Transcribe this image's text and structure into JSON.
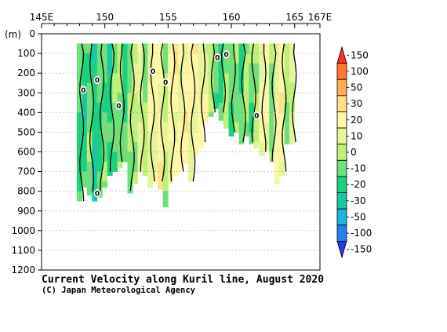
{
  "chart_data": {
    "type": "heatmap",
    "title": "Current Velocity along Kuril line, August 2020",
    "credit": "(C) Japan Meteorological Agency",
    "ylabel_unit": "(m)",
    "x_ticks": [
      "145E",
      "150",
      "155",
      "160",
      "165",
      "167E"
    ],
    "x_tick_values": [
      145,
      150,
      155,
      160,
      165,
      167
    ],
    "xlim": [
      145,
      167
    ],
    "y_ticks": [
      "0",
      "100",
      "200",
      "300",
      "400",
      "500",
      "600",
      "700",
      "800",
      "900",
      "1000",
      "1100",
      "1200"
    ],
    "y_tick_values": [
      0,
      100,
      200,
      300,
      400,
      500,
      600,
      700,
      800,
      900,
      1000,
      1100,
      1200
    ],
    "ylim": [
      0,
      1200
    ],
    "y_inverted": true,
    "grid": true,
    "colorbar": {
      "labels": [
        "150",
        "100",
        "50",
        "30",
        "20",
        "10",
        "0",
        "-10",
        "-20",
        "-30",
        "-50",
        "-100",
        "-150"
      ],
      "levels": [
        150,
        100,
        50,
        30,
        20,
        10,
        0,
        -10,
        -20,
        -30,
        -50,
        -100,
        -150
      ],
      "colors": [
        "#ff3020",
        "#ff7a30",
        "#ffb050",
        "#ffe08a",
        "#fff6a8",
        "#e6f59a",
        "#bff07a",
        "#6fe07a",
        "#19d27f",
        "#16c8a4",
        "#1fb4e0",
        "#2a7ff0",
        "#2438e8"
      ],
      "placement": "right"
    },
    "contour_zero_labels": [
      {
        "lon": 148.3,
        "depth": 285
      },
      {
        "lon": 149.4,
        "depth": 235
      },
      {
        "lon": 151.1,
        "depth": 365
      },
      {
        "lon": 153.8,
        "depth": 190
      },
      {
        "lon": 154.8,
        "depth": 245
      },
      {
        "lon": 158.9,
        "depth": 120
      },
      {
        "lon": 159.6,
        "depth": 105
      },
      {
        "lon": 162.0,
        "depth": 415
      },
      {
        "lon": 149.4,
        "depth": 810
      }
    ],
    "profiles": [
      {
        "lon": 148.0,
        "bottom": 850,
        "value": -20
      },
      {
        "lon": 148.4,
        "bottom": 780,
        "value": -25
      },
      {
        "lon": 148.8,
        "bottom": 820,
        "value": -15
      },
      {
        "lon": 149.2,
        "bottom": 850,
        "value": -30
      },
      {
        "lon": 149.6,
        "bottom": 830,
        "value": -20
      },
      {
        "lon": 150.0,
        "bottom": 780,
        "value": -15
      },
      {
        "lon": 150.4,
        "bottom": 720,
        "value": -25
      },
      {
        "lon": 150.8,
        "bottom": 700,
        "value": -15
      },
      {
        "lon": 151.2,
        "bottom": 680,
        "value": -10
      },
      {
        "lon": 151.6,
        "bottom": 650,
        "value": -20
      },
      {
        "lon": 152.0,
        "bottom": 810,
        "value": -12
      },
      {
        "lon": 152.4,
        "bottom": 760,
        "value": -5
      },
      {
        "lon": 152.8,
        "bottom": 700,
        "value": 5
      },
      {
        "lon": 153.2,
        "bottom": 720,
        "value": -8
      },
      {
        "lon": 153.6,
        "bottom": 780,
        "value": 8
      },
      {
        "lon": 154.0,
        "bottom": 750,
        "value": 12
      },
      {
        "lon": 154.4,
        "bottom": 790,
        "value": 15
      },
      {
        "lon": 154.8,
        "bottom": 880,
        "value": -5
      },
      {
        "lon": 155.2,
        "bottom": 760,
        "value": 12
      },
      {
        "lon": 155.6,
        "bottom": 720,
        "value": 15
      },
      {
        "lon": 156.0,
        "bottom": 700,
        "value": 12
      },
      {
        "lon": 156.4,
        "bottom": 660,
        "value": 15
      },
      {
        "lon": 156.8,
        "bottom": 750,
        "value": 10
      },
      {
        "lon": 157.2,
        "bottom": 620,
        "value": 15
      },
      {
        "lon": 157.6,
        "bottom": 580,
        "value": 12
      },
      {
        "lon": 158.0,
        "bottom": 450,
        "value": 5
      },
      {
        "lon": 158.4,
        "bottom": 420,
        "value": -8
      },
      {
        "lon": 158.8,
        "bottom": 380,
        "value": -15
      },
      {
        "lon": 159.2,
        "bottom": 440,
        "value": -20
      },
      {
        "lon": 159.6,
        "bottom": 480,
        "value": -12
      },
      {
        "lon": 160.0,
        "bottom": 520,
        "value": -18
      },
      {
        "lon": 160.4,
        "bottom": 500,
        "value": -8
      },
      {
        "lon": 160.8,
        "bottom": 560,
        "value": -20
      },
      {
        "lon": 161.2,
        "bottom": 520,
        "value": -10
      },
      {
        "lon": 161.6,
        "bottom": 560,
        "value": -15
      },
      {
        "lon": 162.0,
        "bottom": 580,
        "value": -5
      },
      {
        "lon": 162.4,
        "bottom": 620,
        "value": 8
      },
      {
        "lon": 162.8,
        "bottom": 590,
        "value": 12
      },
      {
        "lon": 163.2,
        "bottom": 650,
        "value": -12
      },
      {
        "lon": 163.6,
        "bottom": 760,
        "value": 10
      },
      {
        "lon": 164.0,
        "bottom": 720,
        "value": 15
      },
      {
        "lon": 164.4,
        "bottom": 560,
        "value": -8
      },
      {
        "lon": 164.8,
        "bottom": 560,
        "value": 5
      }
    ]
  }
}
